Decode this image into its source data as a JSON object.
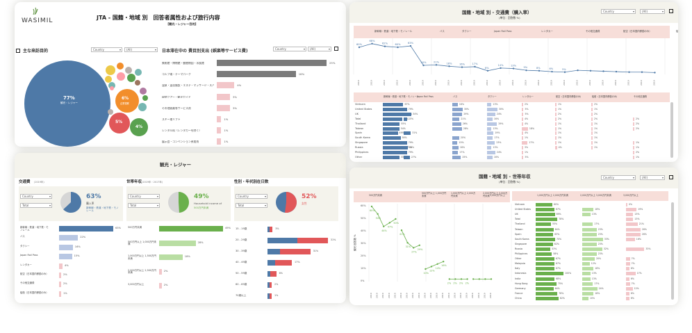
{
  "logo": "WASIMIL",
  "p1": {
    "title": "JTA - 国籍・地域 別　回答者属性および旅行内容",
    "sub": "【観光・レジャー目的】",
    "purpose": {
      "title": "主な来訪目的",
      "country_ph": "Country",
      "all": "(All)",
      "big_pct": "77%",
      "big_lbl": "観光・レジャー",
      "b6": "6%",
      "b6l": "企業視察",
      "b5": "5%",
      "b4": "4%"
    },
    "spend": {
      "title": "日本滞在中の 費目別支出 (娯楽等サービス費)",
      "country_ph": "Country",
      "all": "(All)",
      "items": [
        {
          "label": "美術館・博物館・動植物園・水族館",
          "value": 25
        },
        {
          "label": "ゴルフ場・テーマパーク",
          "value": 18
        },
        {
          "label": "温泉・温浴施設・エステ・マッサージ・スパ",
          "value": 4
        },
        {
          "label": "現地ツアー・観光ガイド",
          "value": 3
        },
        {
          "label": "その他娯楽等サービス費",
          "value": 3
        },
        {
          "label": "スキー場リフト",
          "value": 1
        },
        {
          "label": "レンタル料（レンタカーを除く）",
          "value": 1
        },
        {
          "label": "展示会・コンベンション参加費",
          "value": 1
        }
      ]
    }
  },
  "p2": {
    "title": "観光・レジャー",
    "transport": {
      "title": "交通費",
      "note": "(2019年)",
      "country": "Country",
      "total": "Total",
      "pct": "63%",
      "pct_lbl": "購入率",
      "detail": "新幹線・鉄道・地下鉄・モノレール",
      "items": [
        {
          "label": "新幹線・鉄道・地下鉄・モノレール",
          "value": 63
        },
        {
          "label": "バス",
          "value": 22
        },
        {
          "label": "タクシー",
          "value": 16
        },
        {
          "label": "Japan Rail Pass",
          "value": 15
        },
        {
          "label": "レンタカー",
          "value": 4
        },
        {
          "label": "航空（日本国内移動のみ）",
          "value": 2
        },
        {
          "label": "その他交通費",
          "value": 2
        },
        {
          "label": "船舶（日本国内移動のみ）",
          "value": 1
        }
      ]
    },
    "income": {
      "title": "世帯年収",
      "note": "(2019年・2017年)",
      "country": "Country",
      "total": "Total",
      "pct": "49%",
      "pct_lbl": "Household income of",
      "detail": "500万円未満",
      "items": [
        {
          "label": "500万円未満",
          "value": 49
        },
        {
          "label": "500万円以上 1,000万円未満",
          "value": 28
        },
        {
          "label": "1,000万円以上 1,500万円未満",
          "value": 18
        },
        {
          "label": "2,000万円以上 2,500万円未満",
          "value": 2
        },
        {
          "label": "3,000万円以上",
          "value": 2
        }
      ]
    },
    "age": {
      "title": "性別・年代別在日数",
      "note": "(2019年)",
      "country": "Country",
      "total": "Total",
      "pct": "52%",
      "pct_lbl": "女性",
      "rows": [
        {
          "label": "15 - 19歳",
          "m": 2,
          "f": 3
        },
        {
          "label": "20 - 29歳",
          "m": 31,
          "f": 31
        },
        {
          "label": "30 - 39歳",
          "m": 13,
          "f": 31
        },
        {
          "label": "40 - 49歳",
          "m": 8,
          "f": 17
        },
        {
          "label": "50 - 59歳",
          "m": 3,
          "f": 6
        },
        {
          "label": "60 - 69歳",
          "m": 1,
          "f": 2
        },
        {
          "label": "70歳以上",
          "m": 1,
          "f": 1
        }
      ]
    }
  },
  "p3": {
    "title": "国籍・地域 別 - 交通費（購入率）",
    "sub": "(単位：回答数 %)",
    "country": "Country",
    "all": "(All)",
    "headers": [
      "新幹線・鉄道・地下鉄・モノレール",
      "バス",
      "タクシー",
      "Japan Rail Pass",
      "レンタカー",
      "その他交通費",
      "航空（日本国内移動のみ）",
      "船舶（日本国内"
    ],
    "line_pts": [
      "60%",
      "68%",
      "62%",
      "60%",
      "63%",
      "20%",
      "21%",
      "18%",
      "16%",
      "17%",
      "8%",
      "14%",
      "13%",
      "9%",
      "8%",
      "6%",
      "5%"
    ],
    "cols": [
      "新幹線・鉄道・地下鉄・モノレール",
      "Japan Rail Pass",
      "バス",
      "タクシー",
      "レンタカー",
      "航空（日本国内移動のみ）",
      "船舶（日本国内移動のみ）",
      "その他交通費"
    ],
    "countries": [
      "Vietnam",
      "United States",
      "UK",
      "Total",
      "Thailand",
      "Taiwan",
      "Spain",
      "South Korea",
      "Singapore",
      "Russia",
      "Philippines",
      "Other"
    ],
    "rail": [
      67,
      79,
      75,
      63,
      55,
      54,
      49,
      58,
      79,
      75,
      79,
      55
    ],
    "jrp": [
      null,
      null,
      34,
      15,
      null,
      null,
      31,
      null,
      null,
      18,
      null,
      27
    ],
    "bus": [
      16,
      30,
      29,
      21,
      26,
      28,
      null,
      20,
      15,
      18,
      17,
      25
    ],
    "taxi": [
      13,
      30,
      24,
      16,
      29,
      13,
      19,
      17,
      23,
      13,
      24,
      16
    ],
    "rent": [
      2,
      5,
      5,
      4,
      4,
      18,
      4,
      1,
      17,
      3,
      1,
      5
    ],
    "air": [
      1,
      1,
      2,
      2,
      1,
      1,
      1,
      1,
      1,
      4,
      null,
      null
    ],
    "ship": [
      2,
      1,
      2,
      2,
      1,
      1,
      1,
      1,
      1,
      1,
      null,
      null
    ],
    "other": [
      null,
      null,
      null,
      2,
      2,
      2,
      null,
      null,
      1,
      1,
      2,
      1
    ]
  },
  "p4": {
    "title": "国籍・地域 別 - 世帯年収",
    "sub": "(単位：回答数 %)",
    "country": "Country",
    "all": "(All)",
    "headers": [
      "500万円未満",
      "500万円以上 1,000万円未満",
      "1,000万円以上 2,000万円未満",
      "2,000万円以上 3,000万円未満",
      "3,000万円以上"
    ],
    "ylabel": "観光 回答数 %",
    "yticks": [
      "60%",
      "50%",
      "40%",
      "30%",
      "20%",
      "10%",
      "0%"
    ],
    "pts": [
      "60%",
      "54%",
      "44%",
      "47%",
      "50%",
      "41%",
      "31%",
      "27%",
      "29%",
      "10%",
      "12%",
      "14%",
      "16%",
      "2%",
      "2%",
      "2%",
      "2%"
    ],
    "rcols": [
      "1,000万円以上 2,000万円未満",
      "2,000万円以上 3,000万円未満",
      "3,000万円以上"
    ],
    "countries": [
      "Vietnam",
      "United States",
      "UK",
      "Total",
      "Thailand",
      "Taiwan",
      "Spain",
      "South Korea",
      "Singapore",
      "Russia",
      "Philippines",
      "Other",
      "Malaysia",
      "Italy",
      "Indonesia",
      "India",
      "Hong Kong",
      "Germany",
      "France",
      "China"
    ],
    "inc1": [
      60,
      67,
      69,
      78,
      55,
      64,
      63,
      70,
      62,
      53,
      58,
      67,
      67,
      67,
      100,
      68,
      75,
      64,
      78,
      82
    ],
    "inc2": [
      null,
      18,
      13,
      null,
      17,
      23,
      23,
      33,
      23,
      32,
      23,
      20,
      12,
      18,
      13,
      13,
      17,
      24,
      18,
      10
    ],
    "inc3": [
      0,
      19,
      13,
      13,
      21,
      26,
      26,
      16,
      null,
      33,
      null,
      7,
      7,
      6,
      17,
      6,
      7,
      12,
      6,
      6
    ],
    "inc3x": [
      0,
      1,
      2,
      1,
      1,
      0,
      1,
      0,
      0,
      0,
      0,
      1,
      1,
      0,
      1,
      0,
      0,
      0,
      0,
      28
    ]
  }
}
